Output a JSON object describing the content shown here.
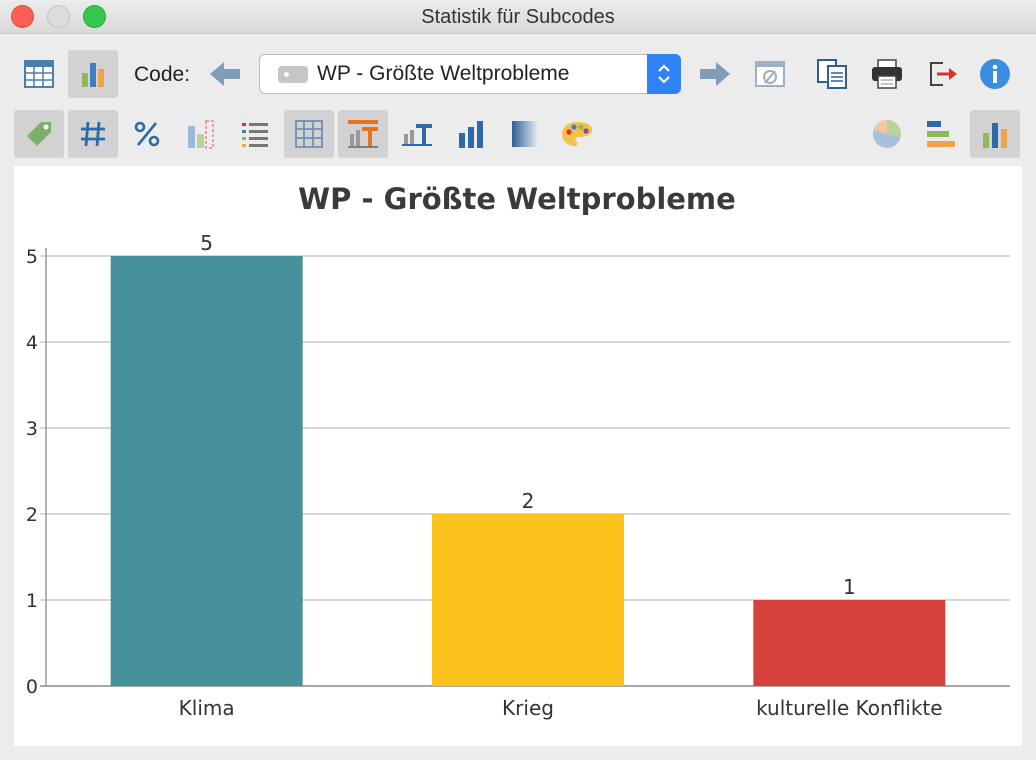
{
  "window": {
    "title": "Statistik für Subcodes"
  },
  "toolbar": {
    "code_label": "Code:",
    "code_select_value": "WP - Größte Weltprobleme",
    "accent_color": "#2f83f5"
  },
  "icons": {
    "row1": [
      "table-view-icon",
      "chart-view-icon",
      "previous-code-icon",
      "next-code-icon",
      "clear-filter-icon",
      "copy-icon",
      "print-icon",
      "export-icon",
      "info-icon"
    ],
    "row2": [
      "tag-icon",
      "frequency-icon",
      "percent-icon",
      "missing-values-icon",
      "list-icon",
      "grid-icon",
      "title-format-icon",
      "axis-label-icon",
      "bar-chart-type-icon",
      "gradient-icon",
      "palette-icon",
      "pie-chart-icon",
      "horizontal-bar-icon",
      "vertical-bar-icon"
    ]
  },
  "chart_data": {
    "type": "bar",
    "title": "WP - Größte Weltprobleme",
    "categories": [
      "Klima",
      "Krieg",
      "kulturelle Konflikte"
    ],
    "values": [
      5,
      2,
      1
    ],
    "colors": [
      "#46919a",
      "#fbc31c",
      "#d5423b"
    ],
    "y_ticks": [
      "0",
      "1",
      "2",
      "3",
      "4",
      "5"
    ],
    "ylim": [
      0,
      5
    ],
    "grid": true,
    "legend": "none"
  }
}
